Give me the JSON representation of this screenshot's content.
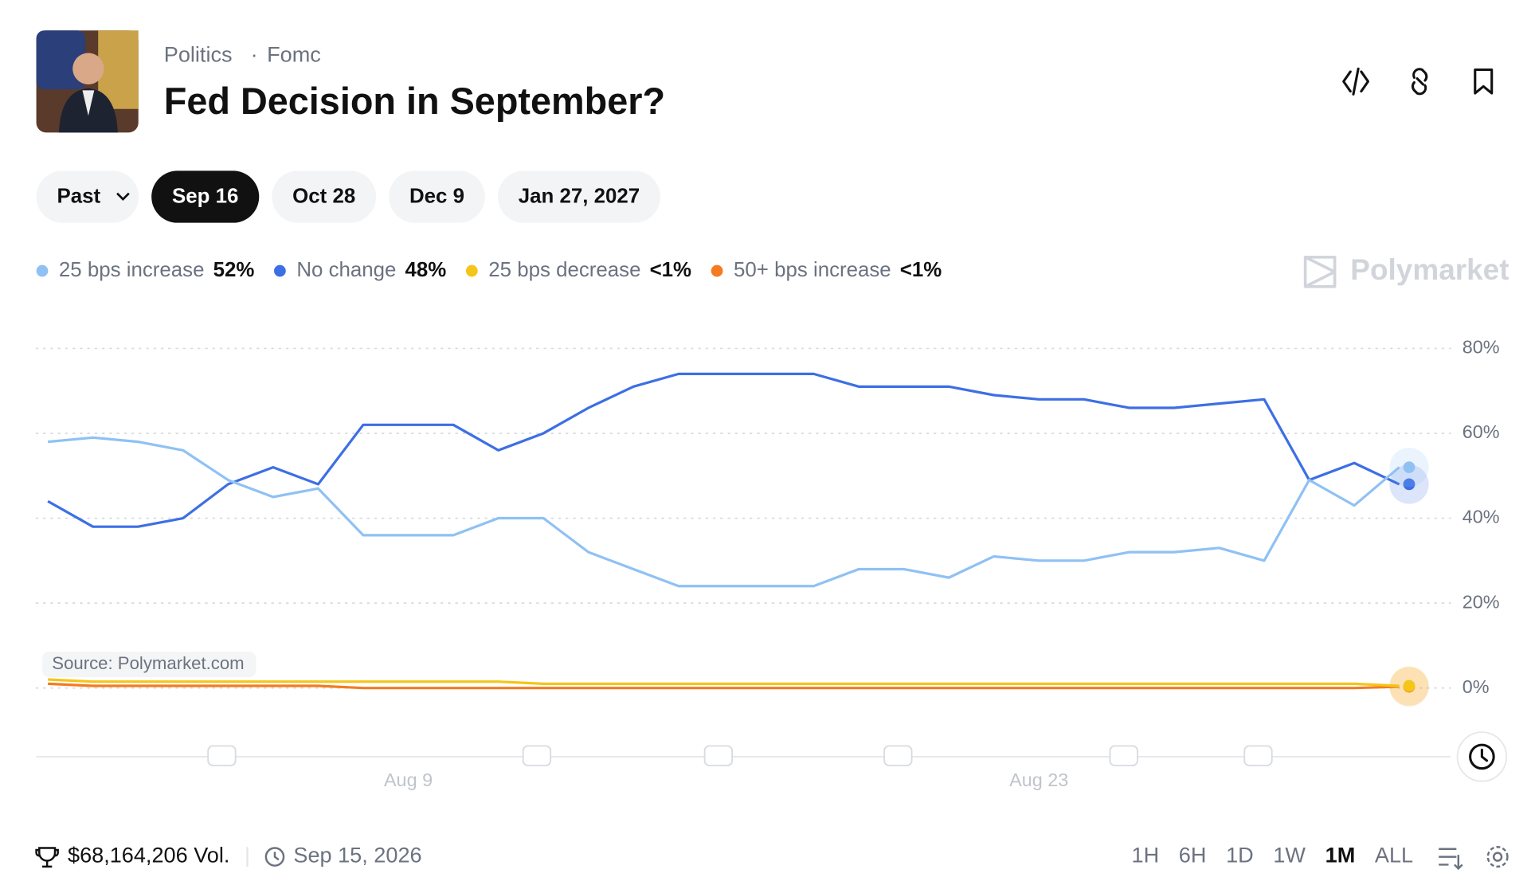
{
  "header": {
    "breadcrumb": [
      "Politics",
      "Fomc"
    ],
    "title": "Fed Decision in September?"
  },
  "date_tabs": [
    "Past",
    "Sep 16",
    "Oct 28",
    "Dec 9",
    "Jan 27, 2027"
  ],
  "selected_tab": 1,
  "brand": "Polymarket",
  "chart_data": {
    "type": "line",
    "source": "Source: Polymarket.com",
    "x": [
      "Aug 1",
      "Aug 2",
      "Aug 3",
      "Aug 4",
      "Aug 5",
      "Aug 6",
      "Aug 7",
      "Aug 8",
      "Aug 9",
      "Aug 10",
      "Aug 11",
      "Aug 12",
      "Aug 13",
      "Aug 14",
      "Aug 15",
      "Aug 16",
      "Aug 17",
      "Aug 18",
      "Aug 19",
      "Aug 20",
      "Aug 21",
      "Aug 22",
      "Aug 23",
      "Aug 24",
      "Aug 25",
      "Aug 26",
      "Aug 27",
      "Aug 28",
      "Aug 29",
      "Aug 30",
      "Aug 31"
    ],
    "series": [
      {
        "name": "25 bps increase",
        "color": "#8fc1f4",
        "current_label": "52%",
        "values": [
          58,
          59,
          58,
          56,
          49,
          45,
          47,
          36,
          36,
          36,
          40,
          40,
          32,
          28,
          24,
          24,
          24,
          24,
          28,
          28,
          26,
          31,
          30,
          30,
          32,
          32,
          33,
          30,
          49,
          43,
          52
        ]
      },
      {
        "name": "No change",
        "color": "#3d6fe4",
        "current_label": "48%",
        "values": [
          44,
          38,
          38,
          40,
          48,
          52,
          48,
          62,
          62,
          62,
          56,
          60,
          66,
          71,
          74,
          74,
          74,
          74,
          71,
          71,
          71,
          69,
          68,
          68,
          66,
          66,
          67,
          68,
          49,
          53,
          48
        ]
      },
      {
        "name": "25 bps decrease",
        "color": "#f5c518",
        "current_label": "<1%",
        "values": [
          2,
          1.5,
          1.5,
          1.5,
          1.5,
          1.5,
          1.5,
          1.5,
          1.5,
          1.5,
          1.5,
          1,
          1,
          1,
          1,
          1,
          1,
          1,
          1,
          1,
          1,
          1,
          1,
          1,
          1,
          1,
          1,
          1,
          1,
          1,
          0.5
        ]
      },
      {
        "name": "50+ bps increase",
        "color": "#f47b20",
        "current_label": "<1%",
        "values": [
          1,
          0.5,
          0.5,
          0.5,
          0.5,
          0.5,
          0.5,
          0,
          0,
          0,
          0,
          0,
          0,
          0,
          0,
          0,
          0,
          0,
          0,
          0,
          0,
          0,
          0,
          0,
          0,
          0,
          0,
          0,
          0,
          0,
          0.3
        ]
      }
    ],
    "ylim": [
      0,
      80
    ],
    "yticks": [
      {
        "value": 0,
        "label": "0%"
      },
      {
        "value": 20,
        "label": "20%"
      },
      {
        "value": 40,
        "label": "40%"
      },
      {
        "value": 60,
        "label": "60%"
      },
      {
        "value": 80,
        "label": "80%"
      }
    ],
    "xticks": [
      "Aug 9",
      "Aug 23"
    ],
    "grid": true
  },
  "footer": {
    "volume": "$68,164,206 Vol.",
    "end_date": "Sep 15, 2026",
    "ranges": [
      "1H",
      "6H",
      "1D",
      "1W",
      "1M",
      "ALL"
    ],
    "selected_range": 4
  }
}
